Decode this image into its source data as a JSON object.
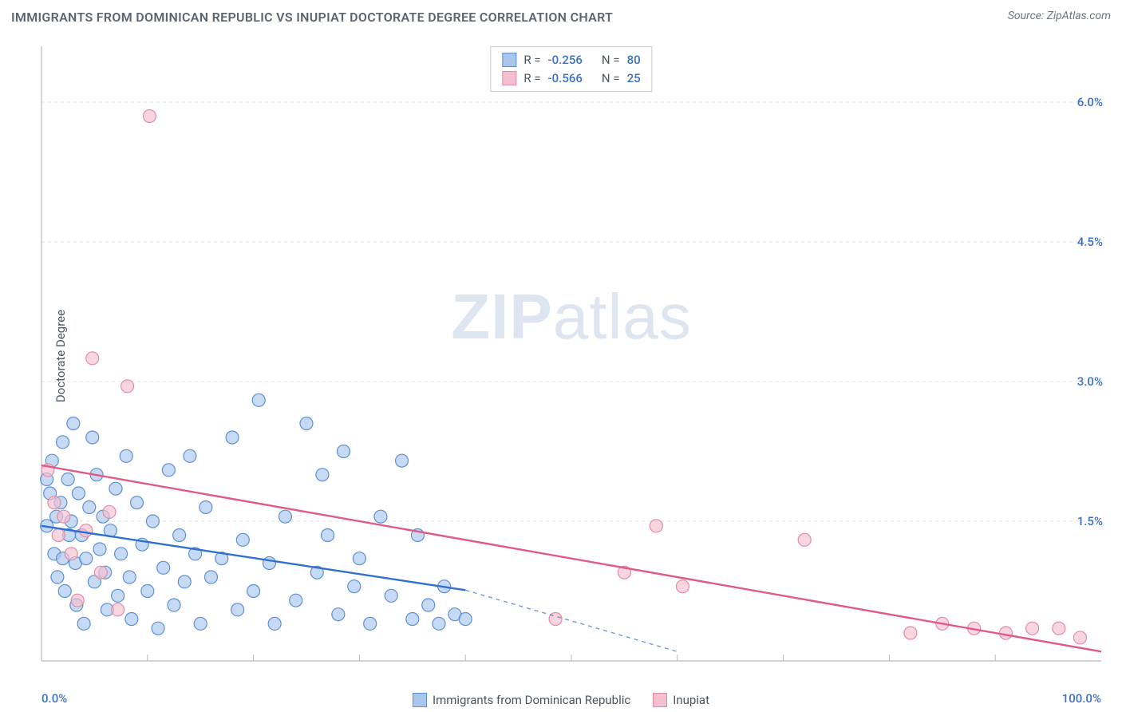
{
  "header": {
    "title": "IMMIGRANTS FROM DOMINICAN REPUBLIC VS INUPIAT DOCTORATE DEGREE CORRELATION CHART",
    "source_label": "Source:",
    "source_value": "ZipAtlas.com"
  },
  "watermark": {
    "zip": "ZIP",
    "atlas": "atlas"
  },
  "chart": {
    "type": "scatter",
    "ylabel": "Doctorate Degree",
    "xlim": [
      0,
      100
    ],
    "ylim": [
      0,
      6.6
    ],
    "xtick_labels": [
      "0.0%",
      "100.0%"
    ],
    "ytick_values": [
      1.5,
      3.0,
      4.5,
      6.0
    ],
    "ytick_labels": [
      "1.5%",
      "3.0%",
      "4.5%",
      "6.0%"
    ],
    "xtick_minor": [
      10,
      20,
      30,
      40,
      50,
      60,
      70,
      80,
      90
    ],
    "background": "#ffffff",
    "grid_color": "#d8dde2",
    "axis_color": "#b5bcc2",
    "colors": {
      "blue_fill": "#a9c6ec",
      "blue_stroke": "#5d8fd4",
      "pink_fill": "#f4c0cf",
      "pink_stroke": "#e58aa6",
      "blue_line": "#2f6fd0",
      "pink_line": "#e05a86",
      "label_blue": "#3b70c4",
      "text_gray": "#4a5560"
    },
    "marker_radius": 8,
    "marker_opacity": 0.65,
    "line_width": 2.4,
    "series": [
      {
        "name": "Immigrants from Dominican Republic",
        "color_key": "blue",
        "R": "-0.256",
        "N": "80",
        "trend": {
          "x1": 0,
          "y1": 1.45,
          "x2": 40,
          "y2": 0.76,
          "extend_x2": 60,
          "extend_y2": 0.1
        },
        "points": [
          [
            0.5,
            1.95
          ],
          [
            0.5,
            1.45
          ],
          [
            0.8,
            1.8
          ],
          [
            1.0,
            2.15
          ],
          [
            1.2,
            1.15
          ],
          [
            1.4,
            1.55
          ],
          [
            1.5,
            0.9
          ],
          [
            1.8,
            1.7
          ],
          [
            2.0,
            2.35
          ],
          [
            2.0,
            1.1
          ],
          [
            2.2,
            0.75
          ],
          [
            2.5,
            1.95
          ],
          [
            2.6,
            1.35
          ],
          [
            2.8,
            1.5
          ],
          [
            3.0,
            2.55
          ],
          [
            3.2,
            1.05
          ],
          [
            3.3,
            0.6
          ],
          [
            3.5,
            1.8
          ],
          [
            3.8,
            1.35
          ],
          [
            4.0,
            0.4
          ],
          [
            4.2,
            1.1
          ],
          [
            4.5,
            1.65
          ],
          [
            4.8,
            2.4
          ],
          [
            5.0,
            0.85
          ],
          [
            5.2,
            2.0
          ],
          [
            5.5,
            1.2
          ],
          [
            5.8,
            1.55
          ],
          [
            6.0,
            0.95
          ],
          [
            6.2,
            0.55
          ],
          [
            6.5,
            1.4
          ],
          [
            7.0,
            1.85
          ],
          [
            7.2,
            0.7
          ],
          [
            7.5,
            1.15
          ],
          [
            8.0,
            2.2
          ],
          [
            8.3,
            0.9
          ],
          [
            8.5,
            0.45
          ],
          [
            9.0,
            1.7
          ],
          [
            9.5,
            1.25
          ],
          [
            10.0,
            0.75
          ],
          [
            10.5,
            1.5
          ],
          [
            11.0,
            0.35
          ],
          [
            11.5,
            1.0
          ],
          [
            12.0,
            2.05
          ],
          [
            12.5,
            0.6
          ],
          [
            13.0,
            1.35
          ],
          [
            13.5,
            0.85
          ],
          [
            14.0,
            2.2
          ],
          [
            14.5,
            1.15
          ],
          [
            15.0,
            0.4
          ],
          [
            15.5,
            1.65
          ],
          [
            16.0,
            0.9
          ],
          [
            17.0,
            1.1
          ],
          [
            18.0,
            2.4
          ],
          [
            18.5,
            0.55
          ],
          [
            19.0,
            1.3
          ],
          [
            20.0,
            0.75
          ],
          [
            20.5,
            2.8
          ],
          [
            21.5,
            1.05
          ],
          [
            22.0,
            0.4
          ],
          [
            23.0,
            1.55
          ],
          [
            24.0,
            0.65
          ],
          [
            25.0,
            2.55
          ],
          [
            26.0,
            0.95
          ],
          [
            26.5,
            2.0
          ],
          [
            27.0,
            1.35
          ],
          [
            28.0,
            0.5
          ],
          [
            28.5,
            2.25
          ],
          [
            29.5,
            0.8
          ],
          [
            30.0,
            1.1
          ],
          [
            31.0,
            0.4
          ],
          [
            32.0,
            1.55
          ],
          [
            33.0,
            0.7
          ],
          [
            34.0,
            2.15
          ],
          [
            35.0,
            0.45
          ],
          [
            35.5,
            1.35
          ],
          [
            36.5,
            0.6
          ],
          [
            37.5,
            0.4
          ],
          [
            38.0,
            0.8
          ],
          [
            39.0,
            0.5
          ],
          [
            40.0,
            0.45
          ]
        ]
      },
      {
        "name": "Inupiat",
        "color_key": "pink",
        "R": "-0.566",
        "N": "25",
        "trend": {
          "x1": 0,
          "y1": 2.1,
          "x2": 100,
          "y2": 0.1
        },
        "points": [
          [
            0.6,
            2.05
          ],
          [
            1.2,
            1.7
          ],
          [
            1.6,
            1.35
          ],
          [
            2.1,
            1.55
          ],
          [
            2.8,
            1.15
          ],
          [
            3.4,
            0.65
          ],
          [
            4.2,
            1.4
          ],
          [
            4.8,
            3.25
          ],
          [
            5.6,
            0.95
          ],
          [
            6.4,
            1.6
          ],
          [
            7.2,
            0.55
          ],
          [
            8.1,
            2.95
          ],
          [
            10.2,
            5.85
          ],
          [
            48.5,
            0.45
          ],
          [
            55.0,
            0.95
          ],
          [
            58.0,
            1.45
          ],
          [
            60.5,
            0.8
          ],
          [
            72.0,
            1.3
          ],
          [
            82.0,
            0.3
          ],
          [
            85.0,
            0.4
          ],
          [
            88.0,
            0.35
          ],
          [
            91.0,
            0.3
          ],
          [
            93.5,
            0.35
          ],
          [
            96.0,
            0.35
          ],
          [
            98.0,
            0.25
          ]
        ]
      }
    ]
  },
  "xlegend": {
    "items": [
      {
        "label": "Immigrants from Dominican Republic",
        "color_key": "blue"
      },
      {
        "label": "Inupiat",
        "color_key": "pink"
      }
    ]
  }
}
